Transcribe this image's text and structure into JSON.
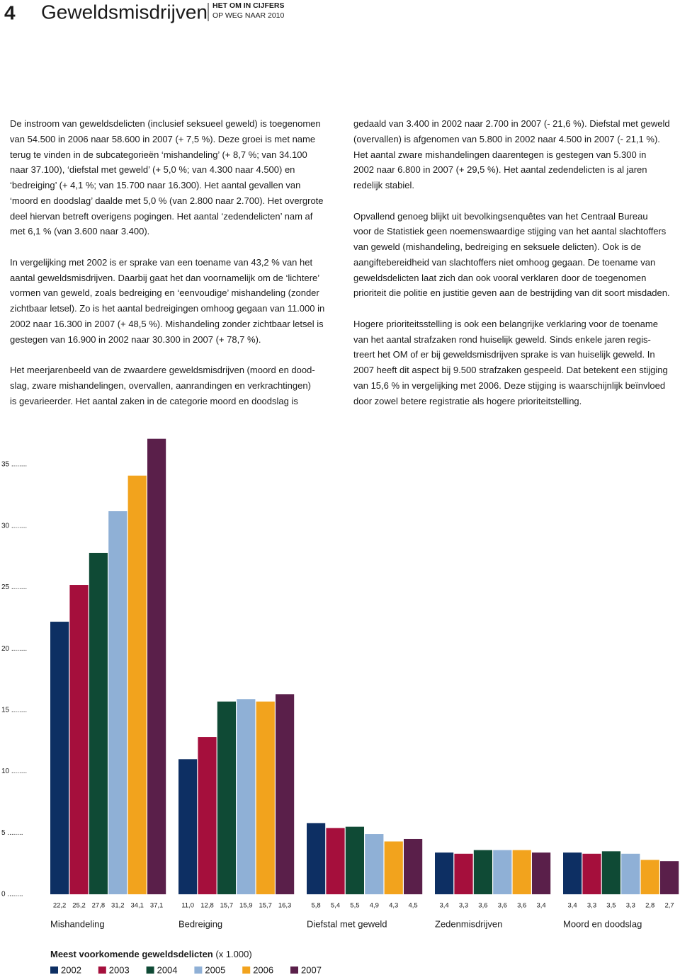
{
  "header": {
    "page_number": "4",
    "title": "Geweldsmisdrijven",
    "series_title": "HET OM IN CIJFERS",
    "series_subtitle": "OP WEG NAAR 2010"
  },
  "left_column": [
    [
      "De instroom van geweldsdelicten (inclusief seksueel geweld) is toegenomen",
      "van 54.500 in 2006 naar 58.600 in 2007 (+ 7,5 %). Deze groei is met name",
      "terug te vinden in de subcategorieën ‘mishandeling’ (+ 8,7 %; van 34.100",
      "naar 37.100), ‘diefstal met geweld’ (+ 5,0 %; van 4.300 naar 4.500) en",
      "‘bedreiging’ (+ 4,1 %; van 15.700 naar 16.300). Het aantal gevallen van",
      "‘moord en doodslag’ daalde met 5,0 % (van 2.800 naar 2.700). Het overgrote",
      "deel hiervan betreft overigens pogingen. Het aantal ‘zedendelicten’ nam af",
      "met 6,1 % (van 3.600 naar 3.400)."
    ],
    [
      "In vergelijking met 2002 is er sprake van een toename van 43,2 % van het",
      "aantal geweldsmisdrijven. Daarbij gaat het dan voornamelijk om de ‘lichtere’",
      "vormen van geweld, zoals bedreiging en ‘eenvoudige’ mishandeling (zonder",
      "zichtbaar letsel). Zo is het aantal bedreigingen omhoog gegaan van 11.000 in",
      "2002 naar 16.300 in 2007 (+ 48,5 %). Mishandeling zonder zichtbaar letsel is",
      "gestegen van 16.900 in 2002 naar 30.300 in 2007 (+ 78,7 %)."
    ],
    [
      "Het meerjarenbeeld van de zwaardere geweldsmisdrijven (moord en dood-",
      "slag, zware mishandelingen, overvallen, aanrandingen en verkrachtingen)",
      "is gevarieerder. Het aantal zaken in de categorie moord en doodslag is"
    ]
  ],
  "right_column": [
    [
      "gedaald van 3.400 in 2002 naar 2.700 in 2007 (- 21,6 %). Diefstal met geweld",
      "(overvallen) is afgenomen van 5.800 in 2002 naar 4.500 in 2007 (- 21,1 %).",
      "Het aantal zware mishandelingen daarentegen is gestegen van 5.300 in",
      "2002 naar 6.800 in 2007 (+ 29,5 %). Het aantal zedendelicten is al jaren",
      "redelijk stabiel."
    ],
    [
      "Opvallend genoeg blijkt uit bevolkingsenquêtes van het Centraal Bureau",
      "voor de Statistiek geen noemenswaardige stijging van het aantal slachtoffers",
      "van geweld (mishandeling, bedreiging en seksuele delicten). Ook is de",
      "aangiftebereidheid van slachtoffers niet omhoog gegaan. De toename van",
      "geweldsdelicten laat zich dan ook vooral verklaren door de toegenomen",
      "prioriteit die politie en justitie geven aan de bestrijding van dit soort misdaden."
    ],
    [
      "Hogere prioriteitsstelling is ook een belangrijke verklaring voor de toename",
      "van het aantal strafzaken rond huiselijk geweld. Sinds enkele jaren regis-",
      "treert het OM of er bij geweldsmisdrijven sprake is van huiselijk geweld. In",
      "2007 heeft dit aspect bij 9.500 strafzaken gespeeld. Dat betekent een stijging",
      "van 15,6 % in vergelijking met 2006. Deze stijging is waarschijnlijk beïnvloed",
      "door zowel betere registratie als hogere prioriteitstelling."
    ]
  ],
  "chart_data": {
    "type": "bar",
    "title": "Meest voorkomende geweldsdelicten",
    "unit": "(x 1.000)",
    "categories": [
      "Mishandeling",
      "Bedreiging",
      "Diefstal met geweld",
      "Zedenmisdrijven",
      "Moord en doodslag"
    ],
    "series": [
      {
        "name": "2002",
        "color": "#0d2f63",
        "values": [
          22.2,
          11.0,
          5.8,
          3.4,
          3.4
        ],
        "value_labels": [
          "22,2",
          "11,0",
          "5,8",
          "3,4",
          "3,4"
        ]
      },
      {
        "name": "2003",
        "color": "#a50f3c",
        "values": [
          25.2,
          12.8,
          5.4,
          3.3,
          3.3
        ],
        "value_labels": [
          "25,2",
          "12,8",
          "5,4",
          "3,3",
          "3,3"
        ]
      },
      {
        "name": "2004",
        "color": "#0f4a35",
        "values": [
          27.8,
          15.7,
          5.5,
          3.6,
          3.5
        ],
        "value_labels": [
          "27,8",
          "15,7",
          "5,5",
          "3,6",
          "3,5"
        ]
      },
      {
        "name": "2005",
        "color": "#8fb0d6",
        "values": [
          31.2,
          15.9,
          4.9,
          3.6,
          3.3
        ],
        "value_labels": [
          "31,2",
          "15,9",
          "4,9",
          "3,6",
          "3,3"
        ]
      },
      {
        "name": "2006",
        "color": "#f2a31d",
        "values": [
          34.1,
          15.7,
          4.3,
          3.6,
          2.8
        ],
        "value_labels": [
          "34,1",
          "15,7",
          "4,3",
          "3,6",
          "2,8"
        ]
      },
      {
        "name": "2007",
        "color": "#5a1f4a",
        "values": [
          37.1,
          16.3,
          4.5,
          3.4,
          2.7
        ],
        "value_labels": [
          "37,1",
          "16,3",
          "4,5",
          "3,4",
          "2,7"
        ]
      }
    ],
    "ylim": [
      0,
      37.1
    ],
    "yticks": [
      {
        "value": 0,
        "label": "0 ........"
      },
      {
        "value": 5,
        "label": "5 ........"
      },
      {
        "value": 10,
        "label": "10 ........"
      },
      {
        "value": 15,
        "label": "15 ........"
      },
      {
        "value": 20,
        "label": "20 ........"
      },
      {
        "value": 25,
        "label": "25 ........"
      },
      {
        "value": 30,
        "label": "30 ........"
      },
      {
        "value": 35,
        "label": "35 ........"
      }
    ],
    "grid": false
  }
}
